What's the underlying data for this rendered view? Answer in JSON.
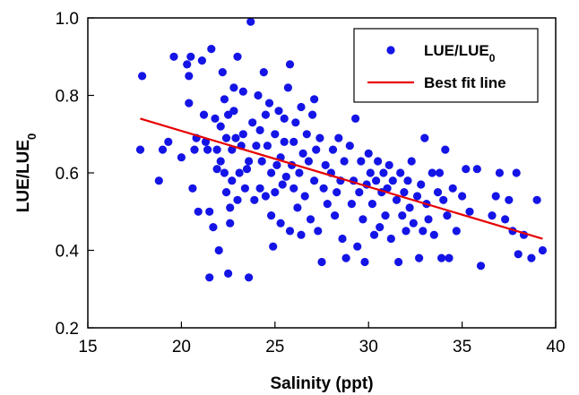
{
  "chart_data": {
    "type": "scatter",
    "xlabel": "Salinity (ppt)",
    "ylabel": "LUE/LUE",
    "ylabel_subscript": "0",
    "xlim": [
      15,
      40
    ],
    "ylim": [
      0.2,
      1.0
    ],
    "x_ticks": [
      "15",
      "20",
      "25",
      "30",
      "35",
      "40"
    ],
    "y_ticks": [
      "0.2",
      "0.4",
      "0.6",
      "0.8",
      "1.0"
    ],
    "grid": false,
    "legend_position": "top-right",
    "series": [
      {
        "name": "LUE/LUE",
        "name_subscript": "0",
        "type": "scatter",
        "color": "#1414e6",
        "points": [
          [
            17.9,
            0.85
          ],
          [
            17.8,
            0.66
          ],
          [
            18.8,
            0.58
          ],
          [
            19.0,
            0.66
          ],
          [
            19.3,
            0.68
          ],
          [
            19.6,
            0.9
          ],
          [
            20.0,
            0.64
          ],
          [
            20.3,
            0.88
          ],
          [
            20.4,
            0.78
          ],
          [
            20.5,
            0.9
          ],
          [
            20.4,
            0.85
          ],
          [
            20.6,
            0.56
          ],
          [
            20.7,
            0.66
          ],
          [
            20.8,
            0.69
          ],
          [
            20.9,
            0.5
          ],
          [
            21.1,
            0.89
          ],
          [
            21.2,
            0.75
          ],
          [
            21.3,
            0.68
          ],
          [
            21.4,
            0.66
          ],
          [
            21.5,
            0.5
          ],
          [
            21.6,
            0.92
          ],
          [
            21.5,
            0.33
          ],
          [
            21.7,
            0.46
          ],
          [
            21.8,
            0.74
          ],
          [
            21.9,
            0.61
          ],
          [
            21.9,
            0.66
          ],
          [
            22.0,
            0.4
          ],
          [
            22.1,
            0.72
          ],
          [
            22.1,
            0.63
          ],
          [
            22.2,
            0.86
          ],
          [
            22.3,
            0.6
          ],
          [
            22.3,
            0.79
          ],
          [
            22.4,
            0.69
          ],
          [
            22.4,
            0.55
          ],
          [
            22.5,
            0.34
          ],
          [
            22.5,
            0.75
          ],
          [
            22.6,
            0.51
          ],
          [
            22.6,
            0.47
          ],
          [
            22.7,
            0.58
          ],
          [
            22.7,
            0.66
          ],
          [
            22.8,
            0.82
          ],
          [
            22.8,
            0.76
          ],
          [
            22.9,
            0.69
          ],
          [
            23.0,
            0.53
          ],
          [
            23.0,
            0.9
          ],
          [
            23.1,
            0.6
          ],
          [
            23.2,
            0.67
          ],
          [
            23.3,
            0.81
          ],
          [
            23.3,
            0.7
          ],
          [
            23.4,
            0.56
          ],
          [
            23.5,
            0.61
          ],
          [
            23.6,
            0.63
          ],
          [
            23.7,
            0.99
          ],
          [
            23.6,
            0.33
          ],
          [
            23.8,
            0.73
          ],
          [
            23.9,
            0.53
          ],
          [
            24.0,
            0.67
          ],
          [
            24.1,
            0.8
          ],
          [
            24.2,
            0.56
          ],
          [
            24.2,
            0.71
          ],
          [
            24.3,
            0.63
          ],
          [
            24.4,
            0.86
          ],
          [
            24.5,
            0.75
          ],
          [
            24.5,
            0.54
          ],
          [
            24.6,
            0.67
          ],
          [
            24.7,
            0.78
          ],
          [
            24.8,
            0.49
          ],
          [
            24.8,
            0.6
          ],
          [
            24.9,
            0.41
          ],
          [
            25.0,
            0.7
          ],
          [
            25.0,
            0.55
          ],
          [
            25.1,
            0.62
          ],
          [
            25.2,
            0.76
          ],
          [
            25.3,
            0.64
          ],
          [
            25.3,
            0.47
          ],
          [
            25.4,
            0.57
          ],
          [
            25.5,
            0.68
          ],
          [
            25.5,
            0.74
          ],
          [
            25.6,
            0.59
          ],
          [
            25.7,
            0.82
          ],
          [
            25.8,
            0.88
          ],
          [
            25.8,
            0.45
          ],
          [
            25.9,
            0.62
          ],
          [
            26.0,
            0.56
          ],
          [
            26.0,
            0.68
          ],
          [
            26.1,
            0.73
          ],
          [
            26.2,
            0.51
          ],
          [
            26.3,
            0.6
          ],
          [
            26.4,
            0.77
          ],
          [
            26.4,
            0.44
          ],
          [
            26.5,
            0.65
          ],
          [
            26.6,
            0.54
          ],
          [
            26.7,
            0.7
          ],
          [
            26.8,
            0.63
          ],
          [
            26.9,
            0.48
          ],
          [
            27.0,
            0.75
          ],
          [
            27.1,
            0.58
          ],
          [
            27.1,
            0.79
          ],
          [
            27.2,
            0.66
          ],
          [
            27.3,
            0.45
          ],
          [
            27.4,
            0.69
          ],
          [
            27.5,
            0.37
          ],
          [
            27.6,
            0.56
          ],
          [
            27.7,
            0.62
          ],
          [
            27.8,
            0.52
          ],
          [
            28.0,
            0.6
          ],
          [
            28.1,
            0.66
          ],
          [
            28.2,
            0.49
          ],
          [
            28.3,
            0.55
          ],
          [
            28.4,
            0.69
          ],
          [
            28.5,
            0.58
          ],
          [
            28.6,
            0.43
          ],
          [
            28.7,
            0.63
          ],
          [
            28.8,
            0.38
          ],
          [
            29.0,
            0.67
          ],
          [
            29.1,
            0.52
          ],
          [
            29.2,
            0.58
          ],
          [
            29.3,
            0.74
          ],
          [
            29.4,
            0.41
          ],
          [
            29.5,
            0.55
          ],
          [
            29.6,
            0.63
          ],
          [
            29.7,
            0.48
          ],
          [
            29.8,
            0.37
          ],
          [
            29.9,
            0.57
          ],
          [
            30.0,
            0.65
          ],
          [
            30.1,
            0.6
          ],
          [
            30.2,
            0.52
          ],
          [
            30.3,
            0.44
          ],
          [
            30.4,
            0.58
          ],
          [
            30.5,
            0.63
          ],
          [
            30.6,
            0.46
          ],
          [
            30.7,
            0.55
          ],
          [
            30.8,
            0.6
          ],
          [
            30.9,
            0.49
          ],
          [
            31.0,
            0.56
          ],
          [
            31.1,
            0.62
          ],
          [
            31.2,
            0.43
          ],
          [
            31.3,
            0.58
          ],
          [
            31.5,
            0.53
          ],
          [
            31.6,
            0.37
          ],
          [
            31.7,
            0.6
          ],
          [
            31.8,
            0.49
          ],
          [
            31.9,
            0.55
          ],
          [
            32.0,
            0.45
          ],
          [
            32.1,
            0.58
          ],
          [
            32.2,
            0.51
          ],
          [
            32.3,
            0.63
          ],
          [
            32.4,
            0.47
          ],
          [
            32.6,
            0.54
          ],
          [
            32.7,
            0.38
          ],
          [
            32.8,
            0.57
          ],
          [
            32.9,
            0.45
          ],
          [
            33.0,
            0.69
          ],
          [
            33.1,
            0.52
          ],
          [
            33.2,
            0.48
          ],
          [
            33.4,
            0.6
          ],
          [
            33.5,
            0.44
          ],
          [
            33.7,
            0.55
          ],
          [
            33.8,
            0.6
          ],
          [
            33.9,
            0.38
          ],
          [
            34.0,
            0.53
          ],
          [
            34.1,
            0.66
          ],
          [
            34.2,
            0.49
          ],
          [
            34.3,
            0.38
          ],
          [
            34.5,
            0.56
          ],
          [
            34.7,
            0.45
          ],
          [
            35.0,
            0.54
          ],
          [
            35.2,
            0.61
          ],
          [
            35.4,
            0.5
          ],
          [
            35.8,
            0.61
          ],
          [
            36.0,
            0.36
          ],
          [
            36.6,
            0.49
          ],
          [
            36.8,
            0.54
          ],
          [
            37.0,
            0.6
          ],
          [
            37.3,
            0.48
          ],
          [
            37.5,
            0.53
          ],
          [
            37.7,
            0.45
          ],
          [
            37.9,
            0.6
          ],
          [
            38.0,
            0.39
          ],
          [
            38.3,
            0.44
          ],
          [
            38.7,
            0.38
          ],
          [
            39.0,
            0.53
          ],
          [
            39.3,
            0.4
          ]
        ]
      },
      {
        "name": "Best fit line",
        "type": "line",
        "color": "#e60000",
        "points": [
          [
            17.8,
            0.74
          ],
          [
            39.3,
            0.43
          ]
        ]
      }
    ]
  }
}
